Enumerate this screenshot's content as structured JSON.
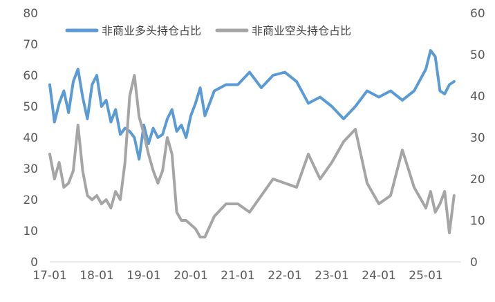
{
  "chart_data": {
    "type": "line",
    "title": "",
    "xlabel": "",
    "ylabel": "",
    "categories": [
      "17-01",
      "18-01",
      "19-01",
      "20-01",
      "21-01",
      "22-01",
      "23-01",
      "24-01",
      "25-01"
    ],
    "ylim_left": [
      0,
      80
    ],
    "ylim_right": [
      0,
      60
    ],
    "yticks_left": [
      "0",
      "10",
      "20",
      "30",
      "40",
      "50",
      "60",
      "70",
      "80"
    ],
    "yticks_right": [
      "0",
      "10",
      "20",
      "30",
      "40",
      "50",
      "60"
    ],
    "grid": false,
    "legend_position": "top-left",
    "series": [
      {
        "name": "非商业多头持仓占比",
        "axis": "left",
        "color": "#5B9BD5",
        "x": [
          2017.0,
          2017.1,
          2017.2,
          2017.3,
          2017.4,
          2017.5,
          2017.6,
          2017.7,
          2017.8,
          2017.9,
          2018.0,
          2018.1,
          2018.2,
          2018.3,
          2018.4,
          2018.5,
          2018.6,
          2018.7,
          2018.8,
          2018.9,
          2019.0,
          2019.1,
          2019.2,
          2019.3,
          2019.4,
          2019.5,
          2019.6,
          2019.7,
          2019.8,
          2019.9,
          2020.0,
          2020.1,
          2020.2,
          2020.3,
          2020.5,
          2020.75,
          2021.0,
          2021.25,
          2021.5,
          2021.75,
          2022.0,
          2022.25,
          2022.5,
          2022.75,
          2023.0,
          2023.25,
          2023.5,
          2023.75,
          2024.0,
          2024.25,
          2024.5,
          2024.75,
          2025.0,
          2025.1,
          2025.2,
          2025.3,
          2025.4,
          2025.5,
          2025.6
        ],
        "y": [
          57,
          45,
          51,
          55,
          48,
          58,
          62,
          53,
          46,
          57,
          60,
          50,
          52,
          45,
          49,
          41,
          43,
          42,
          40,
          33,
          44,
          38,
          43,
          40,
          41,
          46,
          49,
          42,
          44,
          40,
          47,
          51,
          56,
          47,
          55,
          57,
          57,
          61,
          56,
          60,
          61,
          58,
          51,
          53,
          50,
          46,
          50,
          55,
          53,
          55,
          52,
          55,
          62,
          68,
          66,
          55,
          54,
          57,
          58
        ]
      },
      {
        "name": "非商业空头持仓占比",
        "axis": "right",
        "color": "#A5A5A5",
        "x": [
          2017.0,
          2017.1,
          2017.2,
          2017.3,
          2017.4,
          2017.5,
          2017.6,
          2017.7,
          2017.8,
          2017.9,
          2018.0,
          2018.1,
          2018.2,
          2018.3,
          2018.4,
          2018.5,
          2018.6,
          2018.7,
          2018.8,
          2018.9,
          2019.0,
          2019.1,
          2019.2,
          2019.3,
          2019.4,
          2019.5,
          2019.6,
          2019.7,
          2019.8,
          2019.9,
          2020.0,
          2020.1,
          2020.2,
          2020.3,
          2020.5,
          2020.75,
          2021.0,
          2021.25,
          2021.5,
          2021.75,
          2022.0,
          2022.25,
          2022.5,
          2022.75,
          2023.0,
          2023.25,
          2023.5,
          2023.75,
          2024.0,
          2024.25,
          2024.5,
          2024.75,
          2025.0,
          2025.1,
          2025.2,
          2025.3,
          2025.4,
          2025.5,
          2025.6
        ],
        "y": [
          26,
          20,
          24,
          18,
          19,
          22,
          33,
          22,
          16,
          15,
          16,
          14,
          15,
          13,
          17,
          15,
          24,
          40,
          45,
          35,
          31,
          26,
          22,
          19,
          22,
          30,
          26,
          12,
          10,
          10,
          9,
          8,
          6,
          6,
          11,
          14,
          14,
          12,
          16,
          20,
          19,
          18,
          26,
          20,
          24,
          29,
          32,
          19,
          14,
          16,
          27,
          18,
          13,
          17,
          12,
          14,
          17,
          7,
          16
        ]
      }
    ]
  }
}
